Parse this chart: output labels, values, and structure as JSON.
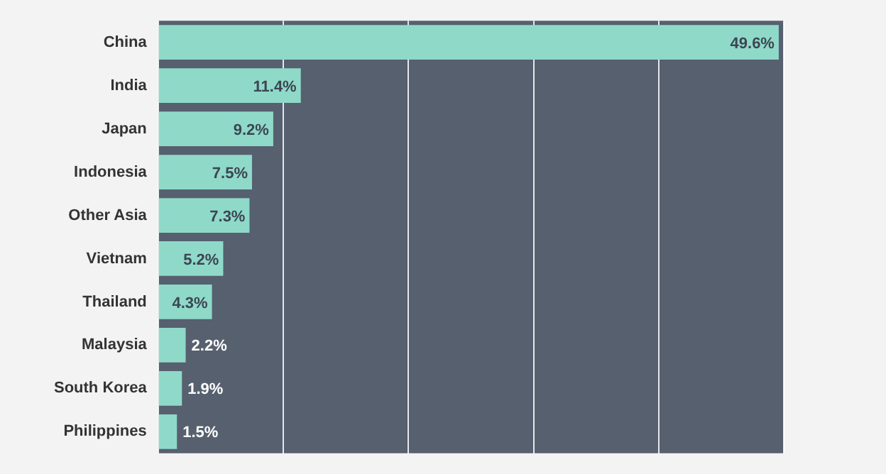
{
  "chart_data": {
    "type": "bar",
    "orientation": "horizontal",
    "categories": [
      "China",
      "India",
      "Japan",
      "Indonesia",
      "Other Asia",
      "Vietnam",
      "Thailand",
      "Malaysia",
      "South Korea",
      "Philippines"
    ],
    "values": [
      49.6,
      11.4,
      9.2,
      7.5,
      7.3,
      5.2,
      4.3,
      2.2,
      1.9,
      1.5
    ],
    "color": "#8fd9c9",
    "xlim": [
      0,
      50
    ],
    "xticks": [
      {
        "value": 0,
        "label": null
      },
      {
        "value": 10,
        "label": null
      },
      {
        "value": 20,
        "label": null
      },
      {
        "value": 30,
        "label": null
      },
      {
        "value": 40,
        "label": null
      },
      {
        "value": 50,
        "label": null
      }
    ],
    "value_labels": [
      "49.6%",
      "11.4%",
      "9.2%",
      "7.5%",
      "7.3%",
      "5.2%",
      "4.3%",
      "2.2%",
      "1.9%",
      "1.5%"
    ],
    "grid": "x",
    "legend": false,
    "tick_labels": "y"
  }
}
